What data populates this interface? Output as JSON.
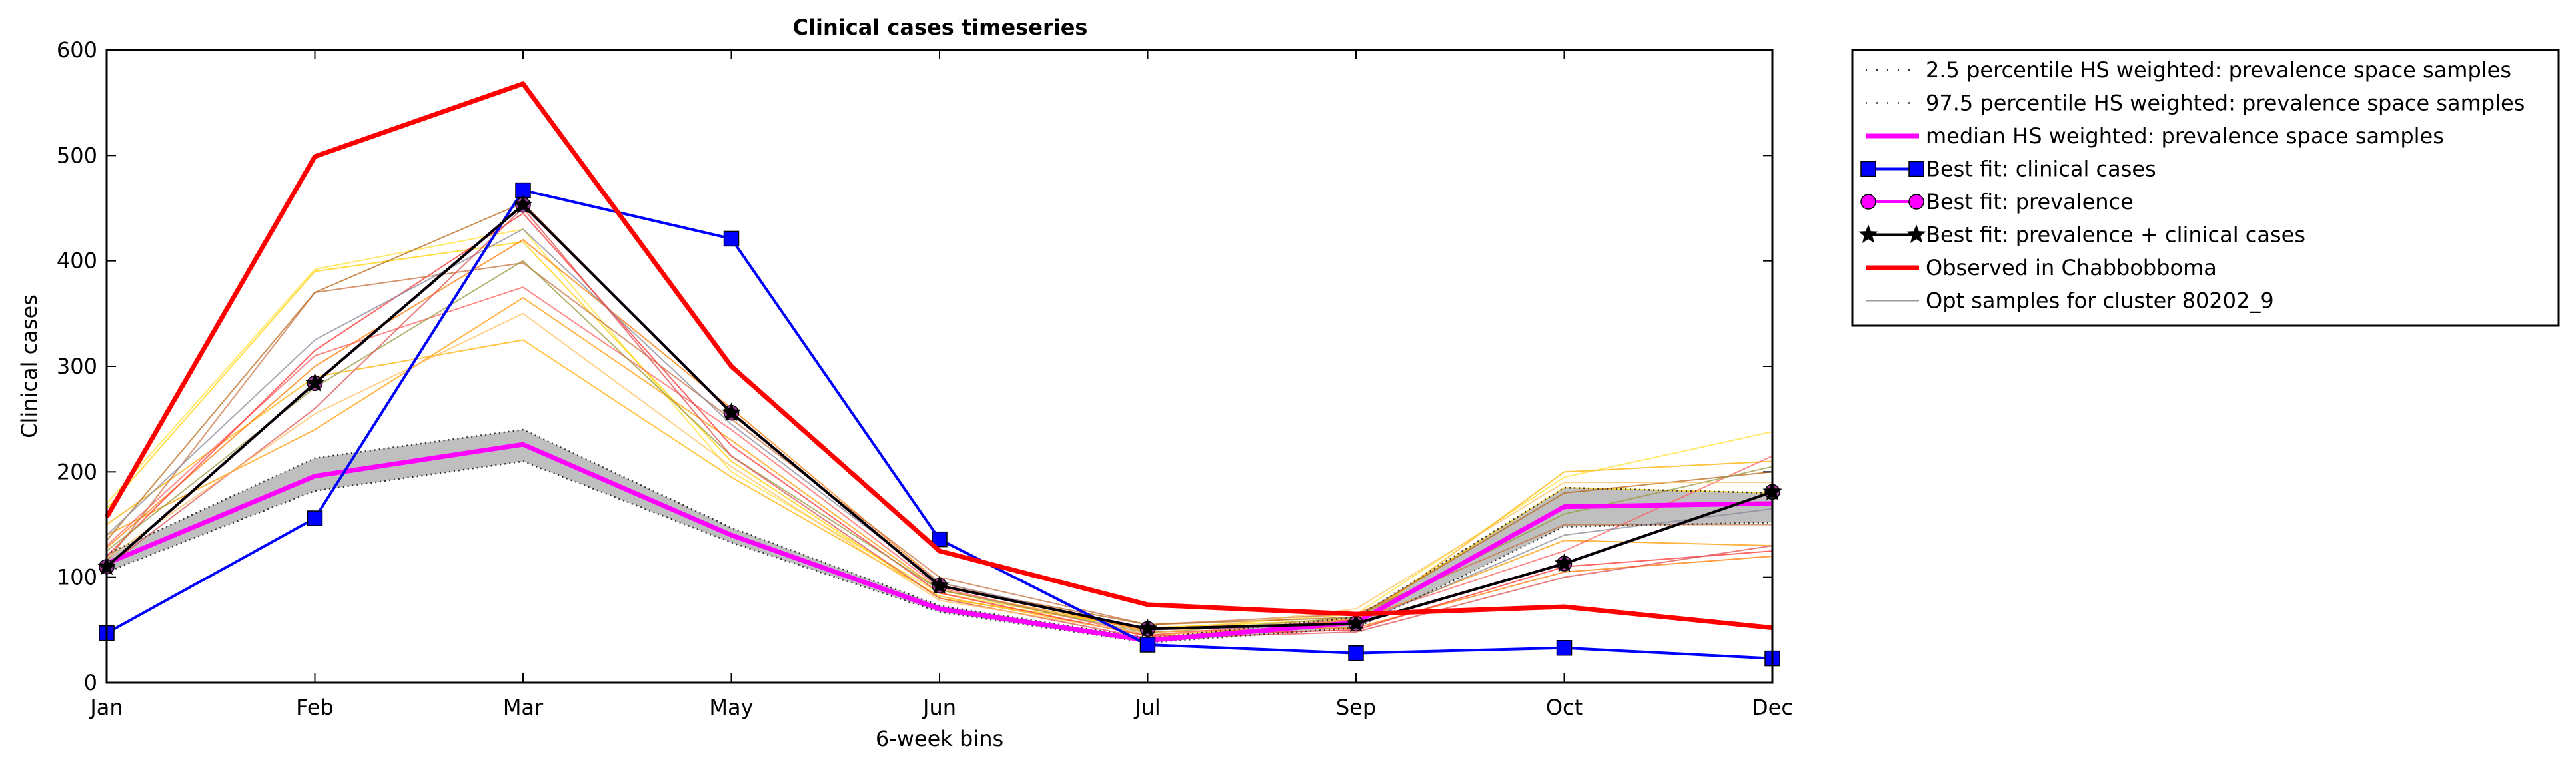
{
  "chart_data": {
    "type": "line",
    "title": "Clinical cases timeseries",
    "xlabel": "6-week bins",
    "ylabel": "Clinical cases",
    "categories": [
      "Jan",
      "Feb",
      "Mar",
      "May",
      "Jun",
      "Jul",
      "Sep",
      "Oct",
      "Dec"
    ],
    "ylim": [
      0,
      600
    ],
    "yticks": [
      "0",
      "100",
      "200",
      "300",
      "400",
      "500",
      "600"
    ],
    "grid": false,
    "legend_position": "outside-right",
    "band": {
      "lower_name": "2.5 percentile HS weighted: prevalence space samples",
      "upper_name": "97.5 percentile HS weighted: prevalence space samples",
      "lower": [
        105,
        182,
        210,
        133,
        67,
        38,
        52,
        148,
        152
      ],
      "upper": [
        122,
        213,
        240,
        147,
        73,
        42,
        62,
        185,
        180
      ],
      "fill_color": "#bfbfbf"
    },
    "series": [
      {
        "name": "median HS weighted: prevalence space samples",
        "color": "#ff00ff",
        "marker": "none",
        "values": [
          113,
          196,
          226,
          140,
          70,
          40,
          57,
          167,
          170
        ]
      },
      {
        "name": "Best fit: clinical cases",
        "color": "#0000ff",
        "marker": "square",
        "values": [
          47,
          156,
          467,
          421,
          136,
          36,
          28,
          33,
          23
        ]
      },
      {
        "name": "Best fit: prevalence",
        "color": "#ff00ff",
        "marker": "circle",
        "values": [
          110,
          284,
          453,
          256,
          92,
          51,
          56,
          113,
          181
        ]
      },
      {
        "name": "Best fit: prevalence + clinical cases",
        "color": "#000000",
        "marker": "star",
        "values": [
          110,
          284,
          453,
          256,
          92,
          51,
          56,
          113,
          181
        ]
      },
      {
        "name": "Observed in Chabbobboma",
        "color": "#ff0000",
        "marker": "none",
        "values": [
          157,
          499,
          568,
          300,
          125,
          74,
          65,
          72,
          52
        ]
      }
    ],
    "opt_samples": {
      "name": "Opt samples for cluster 80202_9",
      "legend_color": "#999999",
      "lines": [
        {
          "color": "#ffe135",
          "values": [
            170,
            392,
            430,
            200,
            85,
            50,
            65,
            195,
            238
          ]
        },
        {
          "color": "#ffd000",
          "values": [
            165,
            390,
            418,
            210,
            80,
            52,
            60,
            185,
            180
          ]
        },
        {
          "color": "#ffb000",
          "values": [
            150,
            290,
            325,
            195,
            82,
            45,
            55,
            200,
            210
          ]
        },
        {
          "color": "#ff9900",
          "values": [
            140,
            240,
            365,
            230,
            88,
            50,
            58,
            135,
            130
          ]
        },
        {
          "color": "#ff7a00",
          "values": [
            128,
            300,
            420,
            260,
            95,
            48,
            52,
            105,
            120
          ]
        },
        {
          "color": "#ff6060",
          "values": [
            130,
            310,
            375,
            240,
            90,
            45,
            60,
            125,
            215
          ]
        },
        {
          "color": "#ff3030",
          "values": [
            120,
            315,
            445,
            225,
            85,
            44,
            50,
            110,
            125
          ]
        },
        {
          "color": "#c87040",
          "values": [
            115,
            370,
            398,
            250,
            100,
            55,
            65,
            150,
            150
          ]
        },
        {
          "color": "#b86818",
          "values": [
            135,
            370,
            455,
            255,
            92,
            55,
            62,
            180,
            200
          ]
        },
        {
          "color": "#8a8a9a",
          "values": [
            140,
            325,
            430,
            245,
            95,
            50,
            55,
            140,
            165
          ]
        },
        {
          "color": "#9a9a40",
          "values": [
            125,
            280,
            400,
            215,
            88,
            47,
            62,
            160,
            205
          ]
        },
        {
          "color": "#e05050",
          "values": [
            110,
            260,
            450,
            215,
            80,
            42,
            48,
            100,
            130
          ]
        },
        {
          "color": "#ffc060",
          "values": [
            118,
            255,
            350,
            205,
            78,
            46,
            70,
            190,
            190
          ]
        }
      ]
    }
  }
}
